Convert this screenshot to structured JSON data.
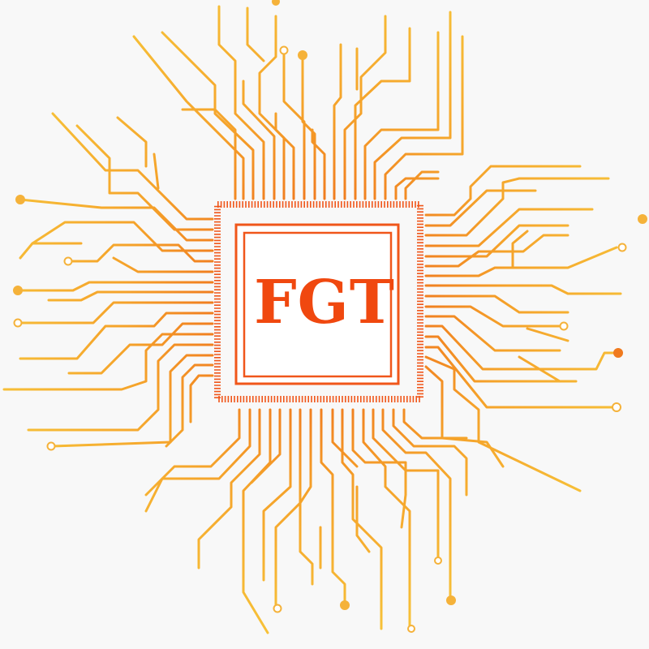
{
  "chip": {
    "label": "FGT"
  },
  "colors": {
    "background": "#f8f8f8",
    "chip_outline": "#f0561a",
    "label": "#f0480f",
    "trace_inner": "#f07a1e",
    "trace_mid": "#f5a22a",
    "trace_outer": "#f7c43a"
  }
}
